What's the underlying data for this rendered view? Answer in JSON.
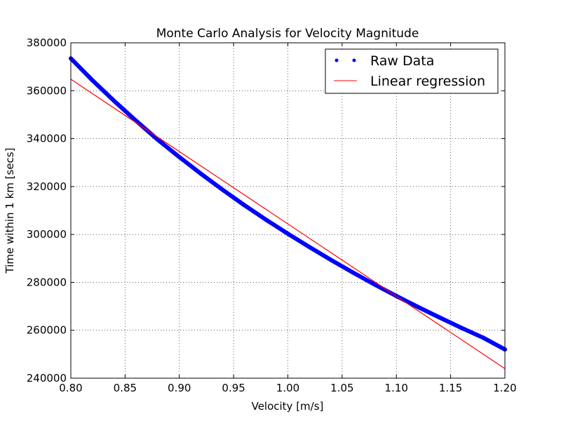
{
  "chart_data": {
    "type": "scatter",
    "title": "Monte Carlo Analysis for Velocity Magnitude",
    "xlabel": "Velocity [m/s]",
    "ylabel": "Time within 1 km [secs]",
    "xlim": [
      0.8,
      1.2
    ],
    "ylim": [
      240000,
      380000
    ],
    "x_ticks": [
      "0.80",
      "0.85",
      "0.90",
      "0.95",
      "1.00",
      "1.05",
      "1.10",
      "1.15",
      "1.20"
    ],
    "y_ticks": [
      "240000",
      "260000",
      "280000",
      "300000",
      "320000",
      "340000",
      "360000",
      "380000"
    ],
    "grid": true,
    "legend_position": "top-right",
    "series": [
      {
        "name": "Raw Data",
        "kind": "markers",
        "color": "#0000ff",
        "x": [
          0.8,
          0.82,
          0.84,
          0.86,
          0.88,
          0.9,
          0.92,
          0.94,
          0.96,
          0.98,
          1.0,
          1.02,
          1.04,
          1.06,
          1.08,
          1.1,
          1.12,
          1.14,
          1.16,
          1.18,
          1.2
        ],
        "y": [
          373500,
          364300,
          355700,
          347500,
          339600,
          332300,
          325300,
          318600,
          312200,
          306100,
          300300,
          294700,
          289300,
          284100,
          279100,
          274300,
          269700,
          265300,
          261000,
          256900,
          252000
        ]
      },
      {
        "name": "Linear regression",
        "kind": "line",
        "color": "#ff0000",
        "x": [
          0.8,
          1.2
        ],
        "y": [
          364800,
          244000
        ]
      }
    ]
  }
}
